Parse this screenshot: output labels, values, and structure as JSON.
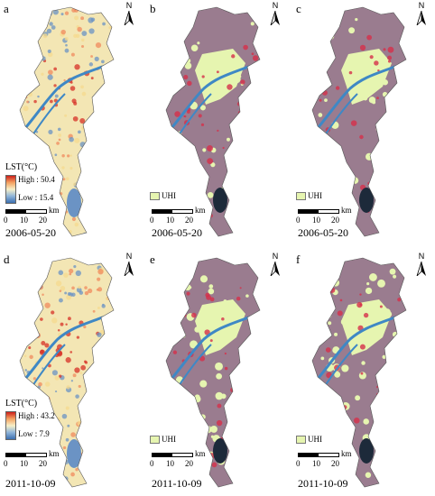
{
  "north_label": "N",
  "scale": {
    "unit": "km",
    "ticks": [
      "0",
      "10",
      "20"
    ]
  },
  "lst_legend_title": "LST(°C)",
  "uhi_label": "UHI",
  "panels": [
    {
      "label": "a",
      "date": "2006-05-20",
      "kind": "lst",
      "high": "High : 50.4",
      "low": "Low : 15.4"
    },
    {
      "label": "b",
      "date": "2006-05-20",
      "kind": "uhi"
    },
    {
      "label": "c",
      "date": "2006-05-20",
      "kind": "uhi"
    },
    {
      "label": "d",
      "date": "2011-10-09",
      "kind": "lst",
      "high": "High : 43.2",
      "low": "Low : 7.9"
    },
    {
      "label": "e",
      "date": "2011-10-09",
      "kind": "uhi"
    },
    {
      "label": "f",
      "date": "2011-10-09",
      "kind": "uhi"
    }
  ],
  "colors": {
    "lst_base": "#f3e6b4",
    "lst_hot": "#d73027",
    "lst_cool": "#6b93c4",
    "river": "#3f88c5",
    "uhi_base": "#9a7c8f",
    "uhi_fill": "#e6f5b0",
    "uhi_hot": "#d6304a"
  }
}
